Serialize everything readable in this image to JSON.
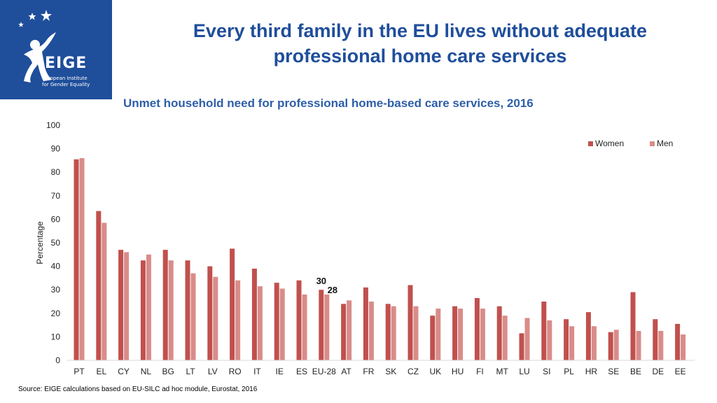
{
  "header": {
    "title_line1": "Every third family in the EU lives without adequate",
    "title_line2": "professional home care services"
  },
  "logo": {
    "name": "EIGE",
    "line1": "European Institute",
    "line2": "for Gender Equality",
    "icon": "eige-figure-stars-logo"
  },
  "footer": {
    "source": "Source: EIGE calculations based on EU-SILC ad hoc module, Eurostat, 2016"
  },
  "colors": {
    "brand": "#1f4e9b",
    "women": "#c0504d",
    "men": "#d98c89"
  },
  "chart_data": {
    "type": "bar",
    "title": "Unmet household need for professional home-based care services, 2016",
    "ylabel": "Percentage",
    "xlabel": "",
    "ylim": [
      0,
      100
    ],
    "yticks": [
      0,
      10,
      20,
      30,
      40,
      50,
      60,
      70,
      80,
      90,
      100
    ],
    "grid": false,
    "legend_position": "top-right",
    "categories": [
      "PT",
      "EL",
      "CY",
      "NL",
      "BG",
      "LT",
      "LV",
      "RO",
      "IT",
      "IE",
      "ES",
      "EU-28",
      "AT",
      "FR",
      "SK",
      "CZ",
      "UK",
      "HU",
      "FI",
      "MT",
      "LU",
      "SI",
      "PL",
      "HR",
      "SE",
      "BE",
      "DE",
      "EE"
    ],
    "series": [
      {
        "name": "Women",
        "values": [
          85.5,
          63.5,
          47,
          42.5,
          47,
          42.5,
          40,
          47.5,
          39,
          33,
          34,
          30,
          24,
          31,
          24,
          32,
          19,
          23,
          26.5,
          23,
          11.5,
          25,
          17.5,
          20.5,
          12,
          29,
          17.5,
          15.5
        ]
      },
      {
        "name": "Men",
        "values": [
          86,
          58.5,
          46,
          45,
          42.5,
          37,
          35.5,
          34,
          31.5,
          30.5,
          28,
          28,
          25.5,
          25,
          23,
          23,
          22,
          22,
          22,
          19,
          18,
          17,
          14.5,
          14.5,
          13,
          12.5,
          12.5,
          11
        ]
      }
    ],
    "annotations": [
      {
        "category": "EU-28",
        "series": "Women",
        "text": "30"
      },
      {
        "category": "EU-28",
        "series": "Men",
        "text": "28"
      }
    ]
  }
}
